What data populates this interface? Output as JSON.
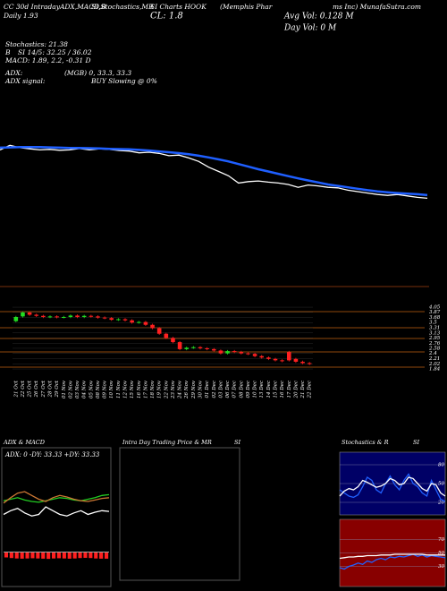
{
  "header": {
    "t1": "CC 30d IntradayADX,MACD,B",
    "t2": "SI,Stochastics,MR",
    "t3": "SI Charts HOOK",
    "t4": "(Memphis Phar",
    "t5": "ms Inc) MunafaSutra.com",
    "t6": "Daily 1.93",
    "t7": "CL: 1.8",
    "t8": "Avg Vol: 0.128  M",
    "t9": "Day Vol: 0  M",
    "t10": "Stochastics: 21.38",
    "t11": "B",
    "t12": "SI 14/5: 32.25 / 36.02",
    "t13": "MACD: 1.89, 2.2, -0.31 D",
    "t14": "ADX:",
    "t15": "(MGB) 0, 33.3, 33.3",
    "t16": "ADX  signal:",
    "t17": "BUY Slowing @ 0%"
  },
  "intraday_panel": {
    "title": "Intra Day Trading Price  & MR",
    "title2": "SI"
  },
  "chart_data": [
    {
      "type": "line",
      "ylim": [
        -1.05,
        5.8
      ],
      "series": [
        {
          "color": "#ffffff",
          "values": [
            3.7,
            3.86,
            3.78,
            3.74,
            3.7,
            3.72,
            3.69,
            3.7,
            3.75,
            3.7,
            3.74,
            3.72,
            3.68,
            3.66,
            3.6,
            3.62,
            3.58,
            3.5,
            3.52,
            3.42,
            3.3,
            3.1,
            2.95,
            2.8,
            2.55,
            2.6,
            2.62,
            2.58,
            2.55,
            2.5,
            2.4,
            2.48,
            2.45,
            2.4,
            2.38,
            2.3,
            2.25,
            2.2,
            2.15,
            2.12,
            2.15,
            2.1,
            2.05,
            2.02
          ]
        },
        {
          "color": "#1f5fff",
          "values": [
            3.78,
            3.79,
            3.8,
            3.8,
            3.8,
            3.79,
            3.78,
            3.77,
            3.77,
            3.76,
            3.75,
            3.74,
            3.73,
            3.72,
            3.7,
            3.68,
            3.65,
            3.62,
            3.59,
            3.55,
            3.5,
            3.44,
            3.37,
            3.3,
            3.21,
            3.12,
            3.03,
            2.95,
            2.87,
            2.79,
            2.71,
            2.64,
            2.57,
            2.5,
            2.45,
            2.4,
            2.35,
            2.3,
            2.26,
            2.23,
            2.2,
            2.18,
            2.16,
            2.13
          ]
        }
      ]
    },
    {
      "type": "candlestick",
      "categories": [
        "21 Oct",
        "22 Oct",
        "25 Oct",
        "26 Oct",
        "27 Oct",
        "28 Oct",
        "29 Oct",
        "01 Nov",
        "02 Nov",
        "03 Nov",
        "04 Nov",
        "05 Nov",
        "08 Nov",
        "09 Nov",
        "10 Nov",
        "11 Nov",
        "12 Nov",
        "15 Nov",
        "16 Nov",
        "17 Nov",
        "18 Nov",
        "19 Nov",
        "22 Nov",
        "23 Nov",
        "24 Nov",
        "26 Nov",
        "29 Nov",
        "30 Nov",
        "01 Dec",
        "02 Dec",
        "03 Dec",
        "06 Dec",
        "07 Dec",
        "08 Dec",
        "09 Dec",
        "10 Dec",
        "13 Dec",
        "14 Dec",
        "15 Dec",
        "16 Dec",
        "17 Dec",
        "20 Dec",
        "21 Dec",
        "22 Dec"
      ],
      "open": [
        3.55,
        3.72,
        3.86,
        3.78,
        3.74,
        3.7,
        3.72,
        3.69,
        3.7,
        3.75,
        3.7,
        3.74,
        3.72,
        3.68,
        3.66,
        3.6,
        3.62,
        3.58,
        3.5,
        3.52,
        3.42,
        3.3,
        3.1,
        2.95,
        2.8,
        2.55,
        2.6,
        2.62,
        2.58,
        2.55,
        2.5,
        2.4,
        2.48,
        2.45,
        2.4,
        2.38,
        2.3,
        2.25,
        2.2,
        2.15,
        2.45,
        2.2,
        2.1,
        2.05
      ],
      "high": [
        3.74,
        3.9,
        3.9,
        3.82,
        3.78,
        3.76,
        3.76,
        3.74,
        3.79,
        3.79,
        3.78,
        3.78,
        3.76,
        3.72,
        3.7,
        3.66,
        3.66,
        3.62,
        3.56,
        3.56,
        3.46,
        3.34,
        3.14,
        2.99,
        2.84,
        2.64,
        2.66,
        2.66,
        2.62,
        2.59,
        2.54,
        2.52,
        2.52,
        2.49,
        2.44,
        2.42,
        2.34,
        2.29,
        2.24,
        2.19,
        2.49,
        2.24,
        2.14,
        2.09
      ],
      "low": [
        3.51,
        3.68,
        3.74,
        3.7,
        3.66,
        3.66,
        3.65,
        3.65,
        3.66,
        3.66,
        3.66,
        3.68,
        3.64,
        3.62,
        3.56,
        3.56,
        3.54,
        3.46,
        3.46,
        3.38,
        3.26,
        3.06,
        2.91,
        2.76,
        2.51,
        2.51,
        2.56,
        2.54,
        2.51,
        2.46,
        2.36,
        2.36,
        2.41,
        2.36,
        2.34,
        2.26,
        2.21,
        2.16,
        2.11,
        2.08,
        2.11,
        2.06,
        2.01,
        1.98
      ],
      "close": [
        3.7,
        3.86,
        3.78,
        3.74,
        3.7,
        3.72,
        3.69,
        3.7,
        3.75,
        3.7,
        3.74,
        3.72,
        3.68,
        3.66,
        3.6,
        3.62,
        3.58,
        3.5,
        3.52,
        3.42,
        3.3,
        3.1,
        2.95,
        2.8,
        2.55,
        2.6,
        2.62,
        2.58,
        2.55,
        2.5,
        2.4,
        2.48,
        2.45,
        2.4,
        2.38,
        2.3,
        2.25,
        2.2,
        2.15,
        2.12,
        2.15,
        2.1,
        2.05,
        2.02
      ],
      "ylim": [
        1.65,
        4.34
      ],
      "yticks": [
        4.05,
        3.87,
        3.68,
        3.5,
        3.31,
        3.13,
        2.95,
        2.76,
        2.58,
        2.4,
        2.21,
        2.02,
        1.84
      ],
      "up_color": "#22dd22",
      "down_color": "#ff2020"
    },
    {
      "type": "line",
      "title": "ADX  & MACD",
      "subtitle": "ADX: 0  -DY: 33.33  +DY: 33.33",
      "ylim": [
        0,
        100
      ],
      "series": [
        {
          "color": "#22cc22",
          "values": [
            48,
            50,
            52,
            49,
            47,
            46,
            48,
            50,
            52,
            51,
            49,
            48,
            50,
            52,
            55,
            56
          ]
        },
        {
          "color": "#cc7733",
          "values": [
            45,
            52,
            58,
            60,
            55,
            50,
            47,
            52,
            55,
            53,
            50,
            48,
            47,
            49,
            51,
            52
          ]
        },
        {
          "color": "#ffffff",
          "values": [
            30,
            35,
            38,
            32,
            28,
            30,
            40,
            35,
            30,
            28,
            32,
            35,
            30,
            33,
            35,
            34
          ]
        }
      ]
    },
    {
      "type": "bar",
      "ylim": [
        -1,
        0.5
      ],
      "color": "#ff2020",
      "values": [
        -0.25,
        -0.28,
        -0.3,
        -0.31,
        -0.3,
        -0.29,
        -0.3,
        -0.31,
        -0.32,
        -0.3,
        -0.29,
        -0.3,
        -0.31,
        -0.3,
        -0.28,
        -0.27,
        -0.28,
        -0.3,
        -0.31,
        -0.31
      ]
    },
    {
      "type": "line",
      "title": "Stochastics & R",
      "title2": "SI",
      "ylim": [
        0,
        100
      ],
      "yticks": [
        80,
        50,
        20
      ],
      "background": "#000066",
      "series": [
        {
          "color": "#2060ff",
          "values": [
            40,
            35,
            30,
            28,
            32,
            45,
            60,
            55,
            40,
            35,
            50,
            62,
            48,
            40,
            55,
            65,
            50,
            45,
            35,
            30,
            55,
            40,
            25,
            21.38
          ]
        },
        {
          "color": "#ffffff",
          "values": [
            30,
            38,
            42,
            40,
            45,
            55,
            52,
            48,
            44,
            46,
            50,
            58,
            55,
            48,
            50,
            60,
            58,
            50,
            42,
            38,
            50,
            48,
            35,
            30
          ]
        }
      ]
    },
    {
      "type": "line",
      "ylim": [
        0,
        100
      ],
      "yticks": [
        70,
        50,
        30
      ],
      "background": "#880000",
      "series": [
        {
          "color": "#2060ff",
          "values": [
            28,
            26,
            30,
            32,
            35,
            33,
            38,
            36,
            40,
            42,
            40,
            44,
            43,
            45,
            44,
            46,
            48,
            45,
            47,
            44,
            46,
            45,
            44,
            43
          ]
        },
        {
          "color": "#ffffff",
          "values": [
            42,
            43,
            44,
            44,
            45,
            45,
            46,
            46,
            46,
            47,
            47,
            47,
            48,
            48,
            48,
            48,
            48,
            48,
            48,
            47,
            47,
            47,
            47,
            47
          ]
        }
      ]
    }
  ]
}
